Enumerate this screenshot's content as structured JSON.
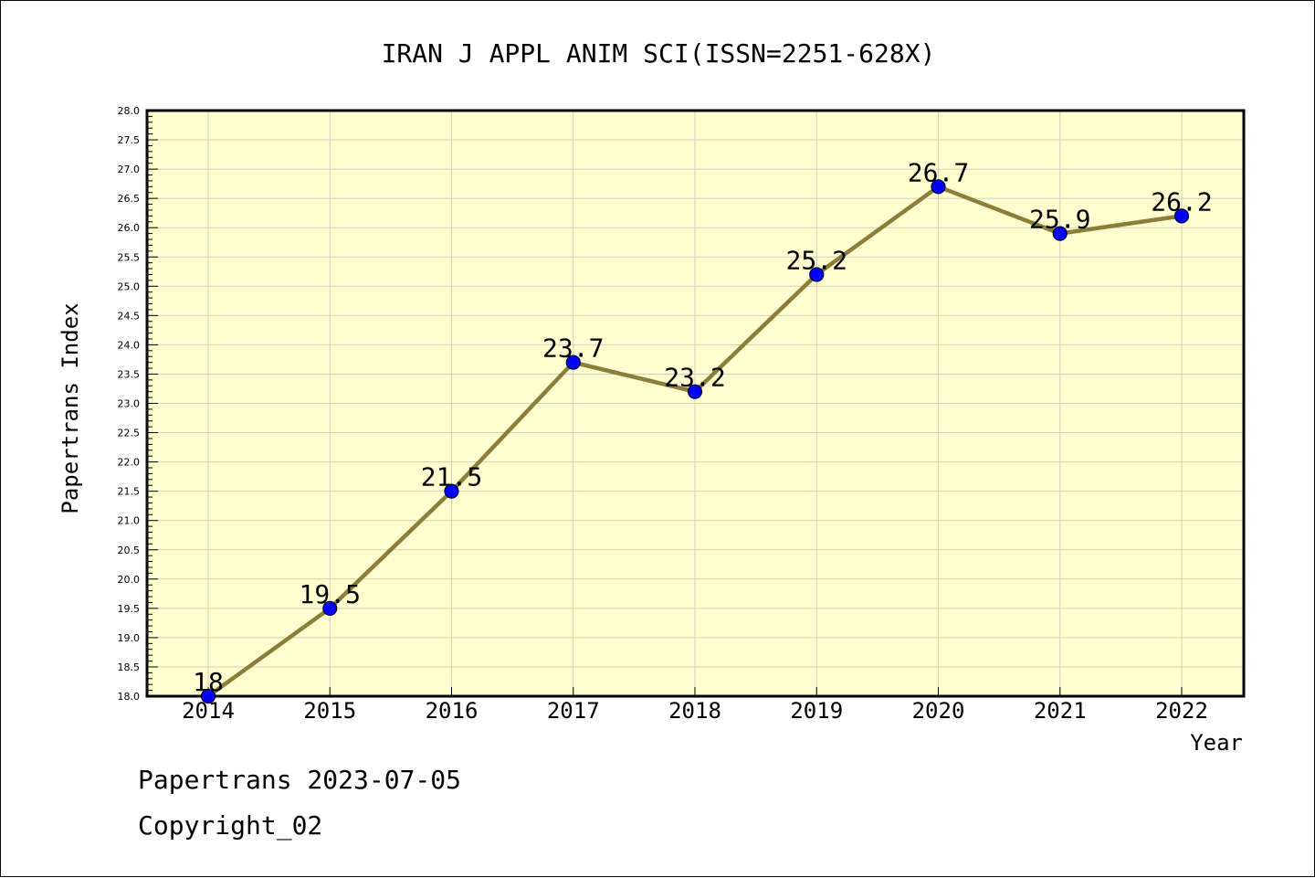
{
  "chart_data": {
    "type": "line",
    "title": "IRAN J APPL ANIM SCI(ISSN=2251-628X)",
    "xlabel": "Year",
    "ylabel": "Papertrans Index",
    "x": [
      "2014",
      "2015",
      "2016",
      "2017",
      "2018",
      "2019",
      "2020",
      "2021",
      "2022"
    ],
    "series": [
      {
        "values": [
          18,
          19.5,
          21.5,
          23.7,
          23.2,
          25.2,
          26.7,
          25.9,
          26.2
        ],
        "data_labels": [
          "18",
          "19.5",
          "21.5",
          "23.7",
          "23.2",
          "25.2",
          "26.7",
          "25.9",
          "26.2"
        ],
        "line_color": "#8b7d3a",
        "marker_color": "#0000ff"
      }
    ],
    "ylim": [
      18.0,
      28.0
    ],
    "ytick_step": 0.5,
    "yticks": [
      "18.0",
      "18.5",
      "19.0",
      "19.5",
      "20.0",
      "20.5",
      "21.0",
      "21.5",
      "22.0",
      "22.5",
      "23.0",
      "23.5",
      "24.0",
      "24.5",
      "25.0",
      "25.5",
      "26.0",
      "26.5",
      "27.0",
      "27.5",
      "28.0"
    ],
    "plot_background": "#ffffd0",
    "grid": true
  },
  "footer": {
    "line1": "Papertrans 2023-07-05",
    "line2": "Copyright_02"
  }
}
